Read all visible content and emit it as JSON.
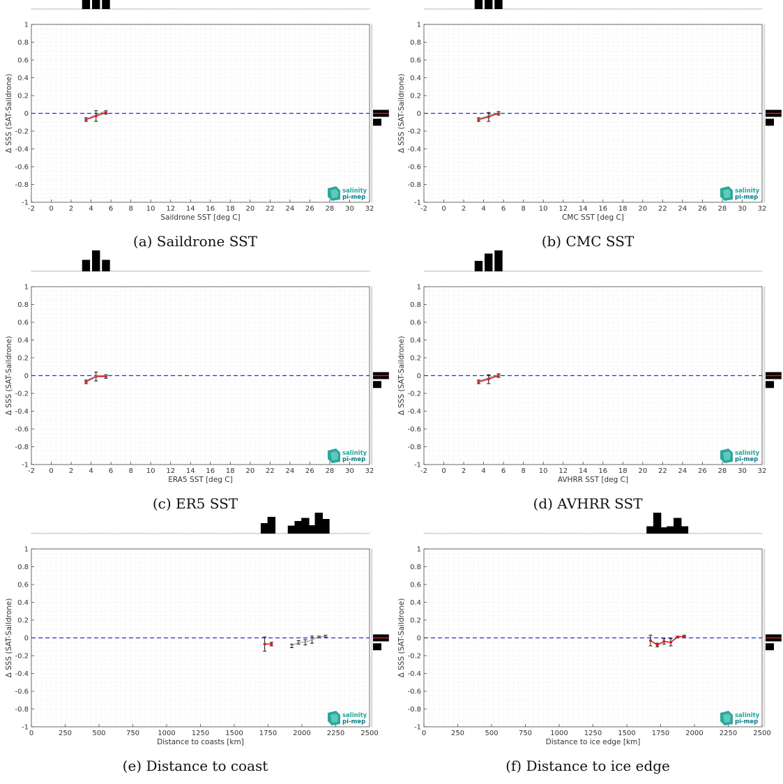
{
  "ylabel": "Δ SSS (SAT-Saildrone)",
  "ylim": [
    -1,
    1
  ],
  "yticks": [
    -1,
    -0.8,
    -0.6,
    -0.4,
    -0.2,
    0,
    0.2,
    0.4,
    0.6,
    0.8,
    1
  ],
  "logo": {
    "line1": "salinity",
    "line2": "pi-mep"
  },
  "colors": {
    "zero_line": "#1f2fd6",
    "mean_line": "#d61f1f",
    "bars": "#000000",
    "grid": "#e6e6e6"
  },
  "right_hist": [
    {
      "y": 0,
      "w": 0.95
    },
    {
      "y": -0.1,
      "w": 0.5
    }
  ],
  "panels": [
    {
      "caption": "(a) Saildrone SST",
      "chart_data": {
        "type": "line",
        "xlabel": "Saildrone SST [deg C]",
        "xlim": [
          -2,
          32
        ],
        "xticks": [
          -2,
          0,
          2,
          4,
          6,
          8,
          10,
          12,
          14,
          16,
          18,
          20,
          22,
          24,
          26,
          28,
          30,
          32
        ],
        "series": [
          {
            "x": [
              3.5,
              4.5,
              5.5
            ],
            "y": [
              -0.07,
              -0.03,
              0.01
            ],
            "err": [
              0.02,
              0.06,
              0.02
            ]
          },
          {
            "x": [
              3.6,
              4.6,
              5.6
            ],
            "y": [
              -0.06,
              -0.01,
              0.03
            ],
            "err": [
              0,
              0,
              0
            ]
          }
        ],
        "hist": [
          {
            "x": 3.5,
            "h": 0.6
          },
          {
            "x": 4.5,
            "h": 1.0
          },
          {
            "x": 5.5,
            "h": 1.0
          }
        ]
      }
    },
    {
      "caption": "(b) CMC SST",
      "chart_data": {
        "type": "line",
        "xlabel": "CMC SST [deg C]",
        "xlim": [
          -2,
          32
        ],
        "xticks": [
          -2,
          0,
          2,
          4,
          6,
          8,
          10,
          12,
          14,
          16,
          18,
          20,
          22,
          24,
          26,
          28,
          30,
          32
        ],
        "series": [
          {
            "x": [
              3.5,
              4.5,
              5.5
            ],
            "y": [
              -0.07,
              -0.04,
              0.0
            ],
            "err": [
              0.02,
              0.05,
              0.02
            ]
          },
          {
            "x": [
              3.6,
              4.6,
              5.6
            ],
            "y": [
              -0.06,
              -0.02,
              0.01
            ],
            "err": [
              0,
              0,
              0
            ]
          }
        ],
        "hist": [
          {
            "x": 3.5,
            "h": 0.5
          },
          {
            "x": 4.5,
            "h": 0.85
          },
          {
            "x": 5.5,
            "h": 1.0
          }
        ]
      }
    },
    {
      "caption": "(c) ER5 SST",
      "chart_data": {
        "type": "line",
        "xlabel": "ERA5 SST [deg C]",
        "xlim": [
          -2,
          32
        ],
        "xticks": [
          -2,
          0,
          2,
          4,
          6,
          8,
          10,
          12,
          14,
          16,
          18,
          20,
          22,
          24,
          26,
          28,
          30,
          32
        ],
        "series": [
          {
            "x": [
              3.5,
              4.5,
              5.5
            ],
            "y": [
              -0.07,
              -0.01,
              -0.01
            ],
            "err": [
              0.02,
              0.05,
              0.02
            ]
          },
          {
            "x": [
              3.6,
              4.6,
              5.6
            ],
            "y": [
              -0.05,
              0.0,
              0.0
            ],
            "err": [
              0,
              0,
              0
            ]
          }
        ],
        "hist": [
          {
            "x": 3.5,
            "h": 0.55
          },
          {
            "x": 4.5,
            "h": 1.0
          },
          {
            "x": 5.5,
            "h": 0.55
          }
        ]
      }
    },
    {
      "caption": "(d) AVHRR SST",
      "chart_data": {
        "type": "line",
        "xlabel": "AVHRR SST [deg C]",
        "xlim": [
          -2,
          32
        ],
        "xticks": [
          -2,
          0,
          2,
          4,
          6,
          8,
          10,
          12,
          14,
          16,
          18,
          20,
          22,
          24,
          26,
          28,
          30,
          32
        ],
        "series": [
          {
            "x": [
              3.5,
              4.5,
              5.5
            ],
            "y": [
              -0.07,
              -0.04,
              0.0
            ],
            "err": [
              0.02,
              0.05,
              0.02
            ]
          },
          {
            "x": [
              3.6,
              4.6,
              5.6
            ],
            "y": [
              -0.06,
              -0.02,
              0.01
            ],
            "err": [
              0,
              0,
              0
            ]
          }
        ],
        "hist": [
          {
            "x": 3.5,
            "h": 0.5
          },
          {
            "x": 4.5,
            "h": 0.85
          },
          {
            "x": 5.5,
            "h": 1.0
          }
        ]
      }
    },
    {
      "caption": "(e) Distance to coast",
      "chart_data": {
        "type": "line",
        "xlabel": "Distance to coasts [km]",
        "xlim": [
          0,
          2500
        ],
        "xticks": [
          0,
          250,
          500,
          750,
          1000,
          1250,
          1500,
          1750,
          2000,
          2250,
          2500
        ],
        "series": [
          {
            "x": [
              1725,
              1775
            ],
            "y": [
              -0.07,
              -0.07
            ],
            "err": [
              0.08,
              0.02
            ]
          },
          {
            "x": [
              1925,
              1975,
              2025,
              2075,
              2125,
              2175
            ],
            "y": [
              -0.09,
              -0.05,
              -0.05,
              -0.02,
              0.01,
              0.02
            ],
            "err": [
              0.02,
              0.02,
              0.03,
              0.04,
              0.01,
              0.01
            ]
          }
        ],
        "hist": [
          {
            "x": 1725,
            "h": 0.5
          },
          {
            "x": 1775,
            "h": 0.8
          },
          {
            "x": 1925,
            "h": 0.38
          },
          {
            "x": 1975,
            "h": 0.6
          },
          {
            "x": 2025,
            "h": 0.75
          },
          {
            "x": 2075,
            "h": 0.4
          },
          {
            "x": 2125,
            "h": 1.0
          },
          {
            "x": 2175,
            "h": 0.7
          }
        ]
      }
    },
    {
      "caption": "(f) Distance to ice edge",
      "chart_data": {
        "type": "line",
        "xlabel": "Distance to ice edge [km]",
        "xlim": [
          0,
          2500
        ],
        "xticks": [
          0,
          250,
          500,
          750,
          1000,
          1250,
          1500,
          1750,
          2000,
          2250,
          2500
        ],
        "series": [
          {
            "x": [
              1675,
              1725,
              1775,
              1825,
              1875,
              1925
            ],
            "y": [
              -0.03,
              -0.08,
              -0.04,
              -0.05,
              0.01,
              0.02
            ],
            "err": [
              0.06,
              0.02,
              0.03,
              0.04,
              0.01,
              0.01
            ]
          }
        ],
        "hist": [
          {
            "x": 1675,
            "h": 0.35
          },
          {
            "x": 1725,
            "h": 1.0
          },
          {
            "x": 1775,
            "h": 0.3
          },
          {
            "x": 1825,
            "h": 0.35
          },
          {
            "x": 1875,
            "h": 0.75
          },
          {
            "x": 1925,
            "h": 0.35
          }
        ]
      }
    }
  ]
}
